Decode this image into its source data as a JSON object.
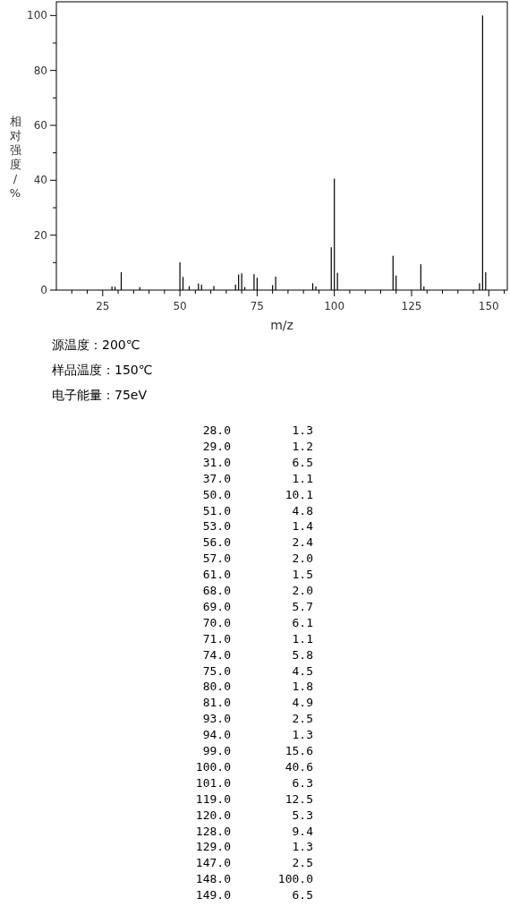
{
  "chart_data": [
    {
      "type": "bar",
      "xlabel": "m/z",
      "ylabel": "相对强度/%",
      "color": "#000000",
      "x": [
        28,
        29,
        31,
        37,
        50,
        51,
        53,
        56,
        57,
        61,
        68,
        69,
        70,
        71,
        74,
        75,
        80,
        81,
        93,
        94,
        99,
        100,
        101,
        119,
        120,
        128,
        129,
        147,
        148,
        149
      ],
      "values": [
        1.3,
        1.2,
        6.5,
        1.1,
        10.1,
        4.8,
        1.4,
        2.4,
        2.0,
        1.5,
        2.0,
        5.7,
        6.1,
        1.1,
        5.8,
        4.5,
        1.8,
        4.9,
        2.5,
        1.3,
        15.6,
        40.6,
        6.3,
        12.5,
        5.3,
        9.4,
        1.3,
        2.5,
        100.0,
        6.5
      ],
      "xlim": [
        10,
        156
      ],
      "xticks": [
        {
          "value": 15,
          "label": null
        },
        {
          "value": 20,
          "label": null
        },
        25,
        {
          "value": 30,
          "label": null
        },
        {
          "value": 35,
          "label": null
        },
        {
          "value": 40,
          "label": null
        },
        {
          "value": 45,
          "label": null
        },
        50,
        {
          "value": 55,
          "label": null
        },
        {
          "value": 60,
          "label": null
        },
        {
          "value": 65,
          "label": null
        },
        {
          "value": 70,
          "label": null
        },
        75,
        {
          "value": 80,
          "label": null
        },
        {
          "value": 85,
          "label": null
        },
        {
          "value": 90,
          "label": null
        },
        {
          "value": 95,
          "label": null
        },
        100,
        {
          "value": 105,
          "label": null
        },
        {
          "value": 110,
          "label": null
        },
        {
          "value": 115,
          "label": null
        },
        {
          "value": 120,
          "label": null
        },
        125,
        {
          "value": 130,
          "label": null
        },
        {
          "value": 135,
          "label": null
        },
        {
          "value": 140,
          "label": null
        },
        {
          "value": 145,
          "label": null
        },
        150,
        {
          "value": 155,
          "label": null
        }
      ],
      "ylim": [
        0,
        105
      ],
      "yticks": [
        0,
        {
          "value": 10,
          "label": null
        },
        20,
        {
          "value": 30,
          "label": null
        },
        40,
        {
          "value": 50,
          "label": null
        },
        60,
        {
          "value": 70,
          "label": null
        },
        80,
        {
          "value": 90,
          "label": null
        },
        100
      ],
      "annotations": [
        "源温度：200℃",
        "样品温度：150℃",
        "电子能量：75eV"
      ]
    },
    {
      "type": "other",
      "annotations": [
        "28.0",
        "1.3",
        "29.0",
        "1.2",
        "31.0",
        "6.5",
        "37.0",
        "1.1",
        "50.0",
        "10.1",
        "51.0",
        "4.8",
        "53.0",
        "1.4",
        "56.0",
        "2.4",
        "57.0",
        "2.0",
        "61.0",
        "1.5",
        "68.0",
        "2.0",
        "69.0",
        "5.7",
        "70.0",
        "6.1",
        "71.0",
        "1.1",
        "74.0",
        "5.8",
        "75.0",
        "4.5",
        "80.0",
        "1.8",
        "81.0",
        "4.9",
        "93.0",
        "2.5",
        "94.0",
        "1.3",
        "99.0",
        "15.6",
        "100.0",
        "40.6",
        "101.0",
        "6.3",
        "119.0",
        "12.5",
        "120.0",
        "5.3",
        "128.0",
        "9.4",
        "129.0",
        "1.3",
        "147.0",
        "2.5",
        "148.0",
        "100.0",
        "149.0",
        "6.5"
      ]
    }
  ]
}
